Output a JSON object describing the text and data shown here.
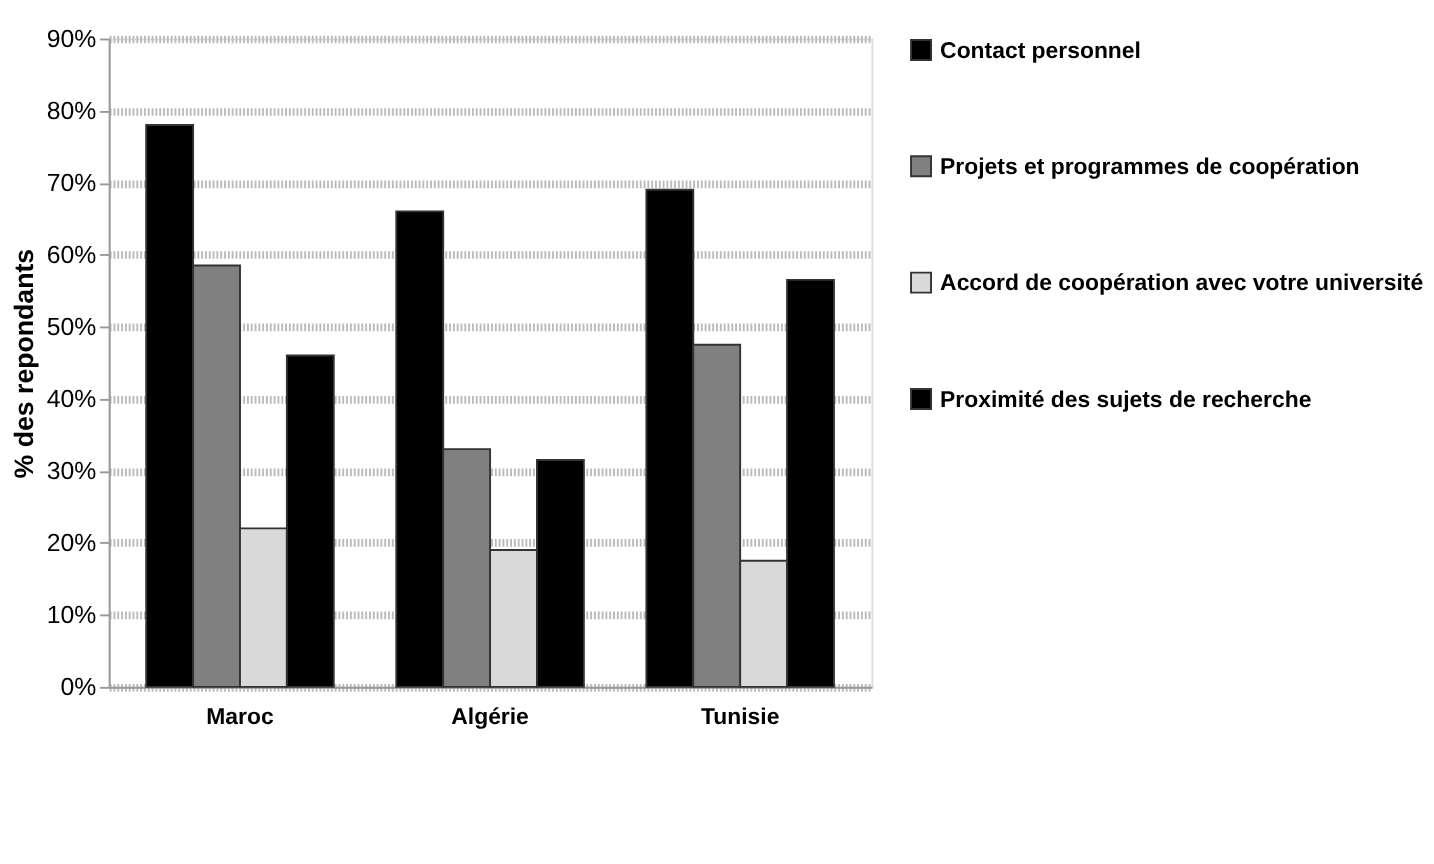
{
  "chart_data": {
    "type": "bar",
    "ylabel": "% des repondants",
    "categories": [
      "Maroc",
      "Algérie",
      "Tunisie"
    ],
    "series": [
      {
        "name": "Contact personnel",
        "color": "#000000",
        "values": [
          78,
          66,
          69
        ]
      },
      {
        "name": "Projets et programmes de coopération",
        "color": "#808080",
        "values": [
          58.5,
          33,
          47.5
        ]
      },
      {
        "name": "Accord de coopération avec votre université",
        "color": "#d9d9d9",
        "values": [
          22,
          19,
          17.5
        ]
      },
      {
        "name": "Proximité des sujets de recherche",
        "color": "#000000",
        "values": [
          46,
          31.5,
          56.5
        ]
      }
    ],
    "ylim": [
      0,
      90
    ],
    "yticks": [
      {
        "value": 0,
        "label": "0%"
      },
      {
        "value": 10,
        "label": "10%"
      },
      {
        "value": 20,
        "label": "20%"
      },
      {
        "value": 30,
        "label": "30%"
      },
      {
        "value": 40,
        "label": "40%"
      },
      {
        "value": 50,
        "label": "50%"
      },
      {
        "value": 60,
        "label": "60%"
      },
      {
        "value": 70,
        "label": "70%"
      },
      {
        "value": 80,
        "label": "80%"
      },
      {
        "value": 90,
        "label": "90%"
      }
    ],
    "grid": "y",
    "legend": "right"
  }
}
